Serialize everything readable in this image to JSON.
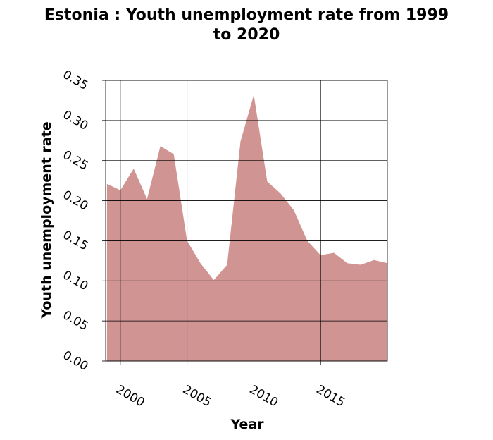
{
  "chart_data": {
    "type": "area",
    "title_line1": "Estonia : Youth unemployment rate from 1999",
    "title_line2": "to 2020",
    "xlabel": "Year",
    "ylabel": "Youth unemployment rate",
    "xlim": [
      1998.9,
      2020
    ],
    "ylim": [
      0,
      0.35
    ],
    "x_ticks": [
      2000,
      2005,
      2010,
      2015
    ],
    "y_ticks": [
      "0.00",
      "0.05",
      "0.10",
      "0.15",
      "0.20",
      "0.25",
      "0.30",
      "0.35"
    ],
    "grid": true,
    "fill_color": "#d09493",
    "x": [
      1999,
      2000,
      2001,
      2002,
      2003,
      2004,
      2005,
      2006,
      2007,
      2008,
      2009,
      2010,
      2011,
      2012,
      2013,
      2014,
      2015,
      2016,
      2017,
      2018,
      2019,
      2020
    ],
    "values": [
      0.221,
      0.213,
      0.24,
      0.202,
      0.268,
      0.258,
      0.15,
      0.122,
      0.101,
      0.12,
      0.274,
      0.332,
      0.224,
      0.209,
      0.188,
      0.15,
      0.132,
      0.135,
      0.122,
      0.12,
      0.126,
      0.122
    ]
  }
}
